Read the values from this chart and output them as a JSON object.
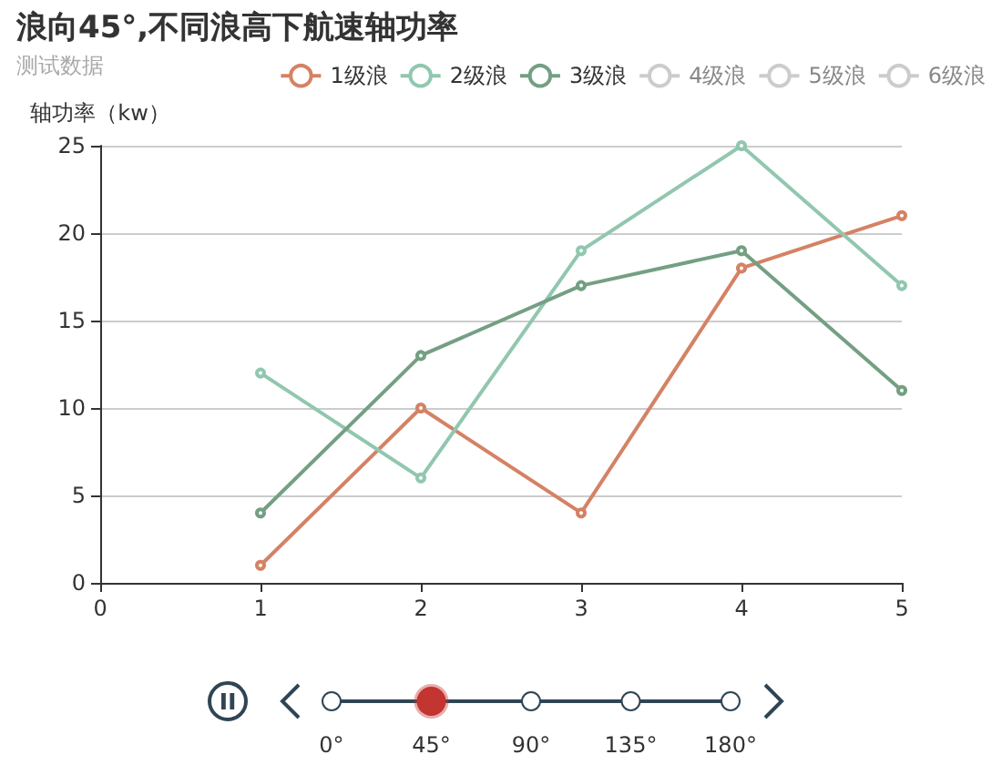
{
  "chart_data": {
    "type": "line",
    "title": "浪向45°,不同浪高下航速轴功率",
    "subtitle": "测试数据",
    "ylabel": "轴功率（kw）",
    "x": [
      1,
      2,
      3,
      4,
      5
    ],
    "series": [
      {
        "name": "1级浪",
        "color": "#d48265",
        "values": [
          1,
          10,
          4,
          18,
          21
        ]
      },
      {
        "name": "2级浪",
        "color": "#91c7ae",
        "values": [
          12,
          6,
          19,
          25,
          17
        ]
      },
      {
        "name": "3级浪",
        "color": "#749f83",
        "values": [
          4,
          13,
          17,
          19,
          11
        ]
      },
      {
        "name": "4级浪",
        "color": "#cccccc",
        "values": [
          null,
          null,
          null,
          null,
          null
        ]
      },
      {
        "name": "5级浪",
        "color": "#cccccc",
        "values": [
          null,
          null,
          null,
          null,
          null
        ]
      },
      {
        "name": "6级浪",
        "color": "#cccccc",
        "values": [
          null,
          null,
          null,
          null,
          null
        ]
      }
    ],
    "xlim": [
      0,
      5
    ],
    "xticks": [
      0,
      1,
      2,
      3,
      4,
      5
    ],
    "ylim": [
      0,
      25
    ],
    "yticks": [
      0,
      5,
      10,
      15,
      20,
      25
    ],
    "grid": "y",
    "legend": "top right",
    "marker": "circle",
    "line_style": "solid",
    "annotations": [
      "0°",
      "45°",
      "90°",
      "135°",
      "180°"
    ]
  }
}
